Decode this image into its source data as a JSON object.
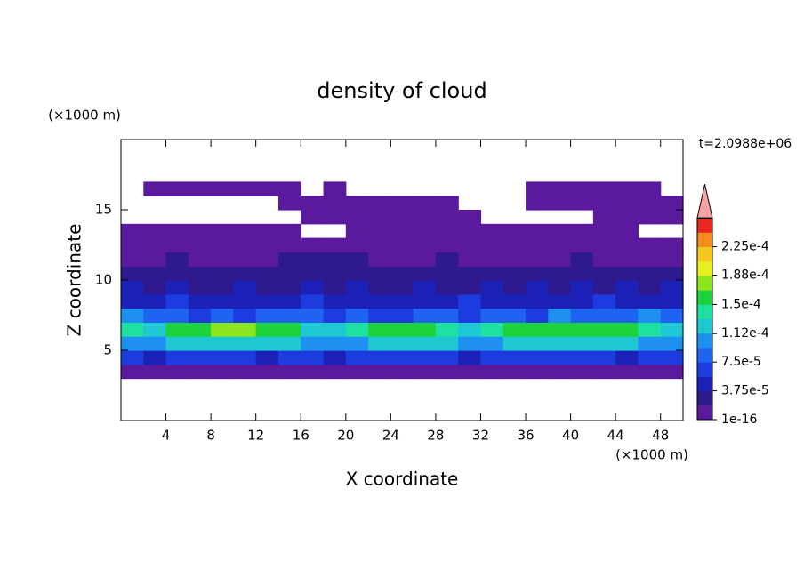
{
  "chart_data": {
    "type": "contour",
    "title": "density of cloud",
    "xlabel": "X coordinate",
    "ylabel": "Z coordinate",
    "xunit": "(×1000 m)",
    "yunit": "(×1000 m)",
    "annotation": "t=2.0988e+06",
    "xlim": [
      0,
      50
    ],
    "ylim": [
      0,
      20
    ],
    "xticks": [
      4,
      8,
      12,
      16,
      20,
      24,
      28,
      32,
      36,
      40,
      44,
      48
    ],
    "yticks": [
      5,
      10,
      15
    ],
    "x": [
      1,
      3,
      5,
      7,
      9,
      11,
      13,
      15,
      17,
      19,
      21,
      23,
      25,
      27,
      29,
      31,
      33,
      35,
      37,
      39,
      41,
      43,
      45,
      47,
      49
    ],
    "z": [
      3.5,
      4.5,
      5.5,
      6.5,
      7.5,
      8.5,
      9.5,
      10.5,
      11.5,
      12.5,
      13.5,
      14.5,
      15.5,
      16.5
    ],
    "values": [
      [
        1e-05,
        1e-05,
        1e-05,
        1e-05,
        1e-05,
        1e-05,
        1e-05,
        1e-05,
        1e-05,
        1e-05,
        1e-05,
        1e-05,
        1e-05,
        1e-05,
        1e-05,
        1e-05,
        1e-05,
        1e-05,
        1e-05,
        1e-05,
        1e-05,
        1e-05,
        1e-05,
        1e-05,
        1e-05
      ],
      [
        6e-05,
        5e-05,
        6e-05,
        7e-05,
        6e-05,
        6e-05,
        5e-05,
        6e-05,
        7e-05,
        5e-05,
        6e-05,
        6e-05,
        7e-05,
        6e-05,
        6e-05,
        5e-05,
        6e-05,
        7e-05,
        6e-05,
        6e-05,
        7e-05,
        6e-05,
        5e-05,
        6e-05,
        6e-05
      ],
      [
        0.00011,
        0.0001,
        0.00012,
        0.00013,
        0.00013,
        0.00013,
        0.00012,
        0.00012,
        0.00011,
        0.0001,
        0.00011,
        0.00012,
        0.00013,
        0.00013,
        0.00012,
        0.00011,
        0.00011,
        0.00012,
        0.00013,
        0.00012,
        0.00013,
        0.00013,
        0.00012,
        0.00011,
        0.00011
      ],
      [
        0.00014,
        0.00013,
        0.00016,
        0.000165,
        0.00017,
        0.00017,
        0.00016,
        0.000155,
        0.00013,
        0.00012,
        0.00014,
        0.00016,
        0.000165,
        0.00016,
        0.00014,
        0.00013,
        0.000145,
        0.00016,
        0.00016,
        0.00015,
        0.000165,
        0.000165,
        0.00016,
        0.00014,
        0.00013
      ],
      [
        0.0001,
        9e-05,
        8e-05,
        7e-05,
        8e-05,
        7e-05,
        8e-05,
        9e-05,
        8e-05,
        7e-05,
        8e-05,
        7e-05,
        7e-05,
        8e-05,
        8e-05,
        7e-05,
        9e-05,
        8e-05,
        7e-05,
        0.00011,
        9e-05,
        9e-05,
        8e-05,
        0.0001,
        9e-05
      ],
      [
        5e-05,
        5e-05,
        6e-05,
        5e-05,
        4e-05,
        5e-05,
        4e-05,
        5e-05,
        6e-05,
        5e-05,
        5e-05,
        4e-05,
        5e-05,
        4e-05,
        5e-05,
        6e-05,
        5e-05,
        5e-05,
        4e-05,
        5e-05,
        5e-05,
        6e-05,
        5e-05,
        4e-05,
        5e-05
      ],
      [
        4e-05,
        3e-05,
        4e-05,
        3e-05,
        3e-05,
        4e-05,
        3e-05,
        3e-05,
        4e-05,
        3e-05,
        4e-05,
        3e-05,
        3e-05,
        4e-05,
        3e-05,
        3e-05,
        4e-05,
        3e-05,
        4e-05,
        3e-05,
        4e-05,
        3e-05,
        4e-05,
        3e-05,
        4e-05
      ],
      [
        2.5e-05,
        2e-05,
        2e-05,
        2.5e-05,
        2e-05,
        2.5e-05,
        2e-05,
        2e-05,
        2.5e-05,
        3e-05,
        2.5e-05,
        2e-05,
        2e-05,
        2.5e-05,
        2e-05,
        2e-05,
        2.5e-05,
        2e-05,
        2e-05,
        2.5e-05,
        2e-05,
        2.5e-05,
        2e-05,
        2e-05,
        2.5e-05
      ],
      [
        1e-05,
        1e-05,
        2e-05,
        1e-05,
        1e-05,
        1e-05,
        1e-05,
        2e-05,
        2e-05,
        2e-05,
        2e-05,
        1e-05,
        1e-05,
        1e-05,
        2e-05,
        1e-05,
        1e-05,
        1e-05,
        1e-05,
        1e-05,
        2e-05,
        1e-05,
        1e-05,
        1e-05,
        1e-05
      ],
      [
        5e-06,
        5e-06,
        5e-06,
        5e-06,
        5e-06,
        5e-06,
        5e-06,
        5e-06,
        1e-05,
        1e-05,
        5e-06,
        5e-06,
        5e-06,
        5e-06,
        5e-06,
        5e-06,
        5e-06,
        5e-06,
        5e-06,
        5e-06,
        5e-06,
        5e-06,
        5e-06,
        5e-06,
        5e-06
      ],
      [
        5e-06,
        5e-06,
        5e-06,
        5e-06,
        5e-06,
        5e-06,
        5e-06,
        5e-06,
        null,
        null,
        5e-06,
        5e-06,
        5e-06,
        5e-06,
        5e-06,
        5e-06,
        5e-06,
        5e-06,
        5e-06,
        5e-06,
        5e-06,
        5e-06,
        5e-06,
        null,
        null
      ],
      [
        null,
        null,
        null,
        null,
        null,
        null,
        null,
        null,
        3e-06,
        3e-06,
        3e-06,
        3e-06,
        3e-06,
        3e-06,
        3e-06,
        3e-06,
        null,
        null,
        null,
        null,
        null,
        3e-06,
        3e-06,
        3e-06,
        3e-06
      ],
      [
        null,
        null,
        null,
        null,
        null,
        null,
        null,
        3e-06,
        3e-06,
        3e-06,
        3e-06,
        3e-06,
        3e-06,
        3e-06,
        3e-06,
        null,
        null,
        null,
        3e-06,
        3e-06,
        3e-06,
        3e-06,
        3e-06,
        3e-06,
        3e-06
      ],
      [
        null,
        3e-06,
        3e-06,
        3e-06,
        3e-06,
        3e-06,
        3e-06,
        3e-06,
        null,
        3e-06,
        null,
        null,
        null,
        null,
        null,
        null,
        null,
        null,
        3e-06,
        3e-06,
        3e-06,
        3e-06,
        3e-06,
        3e-06,
        null
      ]
    ],
    "levels": [
      1e-16,
      1.875e-05,
      3.75e-05,
      5.625e-05,
      7.5e-05,
      9.375e-05,
      0.0001125,
      0.00013125,
      0.00015,
      0.00016875,
      0.0001875,
      0.00020625,
      0.000225,
      0.00024375
    ],
    "colors": [
      "#5b1a9e",
      "#2e1a8e",
      "#1c22b8",
      "#1c3ce0",
      "#1e64f0",
      "#1e90f0",
      "#1ec8d2",
      "#1ee0a0",
      "#1ed23c",
      "#8ce61e",
      "#e6f01e",
      "#f5c81e",
      "#f58c1e",
      "#e8281e"
    ],
    "extend_color": "#f4a4a4",
    "colorbar_ticks": [
      1e-16,
      {
        "value": 3.75e-05,
        "label": "3.75e-5"
      },
      {
        "value": 7.5e-05,
        "label": "7.5e-5"
      },
      {
        "value": 0.000112,
        "label": "1.12e-4"
      },
      {
        "value": 0.00015,
        "label": "1.5e-4"
      },
      {
        "value": 0.000188,
        "label": "1.88e-4"
      },
      {
        "value": 0.000225,
        "label": "2.25e-4"
      }
    ]
  }
}
